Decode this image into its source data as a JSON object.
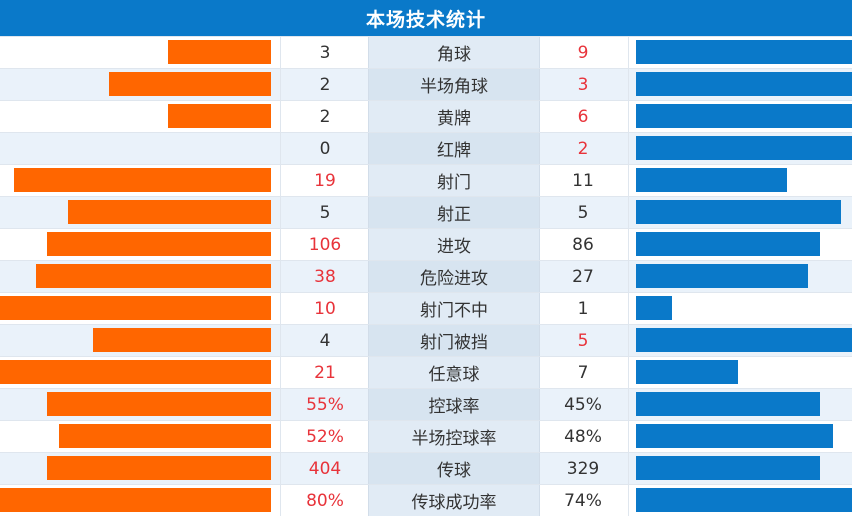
{
  "title": "本场技术统计",
  "colors": {
    "header": "#0a79c9",
    "home_bar": "#ff6600",
    "away_bar": "#0a79c9",
    "highlight": "#e8333a"
  },
  "rows": [
    {
      "label": "角球",
      "home": "3",
      "away": "9",
      "home_frac": 0.379,
      "away_frac": 1.0,
      "highlight": "away"
    },
    {
      "label": "半场角球",
      "home": "2",
      "away": "3",
      "home_frac": 0.599,
      "away_frac": 1.0,
      "highlight": "away"
    },
    {
      "label": "黄牌",
      "home": "2",
      "away": "6",
      "home_frac": 0.379,
      "away_frac": 1.0,
      "highlight": "away"
    },
    {
      "label": "红牌",
      "home": "0",
      "away": "2",
      "home_frac": 0.0,
      "away_frac": 1.0,
      "highlight": "away"
    },
    {
      "label": "射门",
      "home": "19",
      "away": "11",
      "home_frac": 0.949,
      "away_frac": 0.699,
      "highlight": "home"
    },
    {
      "label": "射正",
      "home": "5",
      "away": "5",
      "home_frac": 0.75,
      "away_frac": 0.949,
      "highlight": "none"
    },
    {
      "label": "进攻",
      "home": "106",
      "away": "86",
      "home_frac": 0.827,
      "away_frac": 0.852,
      "highlight": "home"
    },
    {
      "label": "危险进攻",
      "home": "38",
      "away": "27",
      "home_frac": 0.868,
      "away_frac": 0.796,
      "highlight": "home"
    },
    {
      "label": "射门不中",
      "home": "10",
      "away": "1",
      "home_frac": 1.0,
      "away_frac": 0.167,
      "highlight": "home"
    },
    {
      "label": "射门被挡",
      "home": "4",
      "away": "5",
      "home_frac": 0.658,
      "away_frac": 1.0,
      "highlight": "away"
    },
    {
      "label": "任意球",
      "home": "21",
      "away": "7",
      "home_frac": 1.0,
      "away_frac": 0.472,
      "highlight": "home"
    },
    {
      "label": "控球率",
      "home": "55%",
      "away": "45%",
      "home_frac": 0.827,
      "away_frac": 0.852,
      "highlight": "home"
    },
    {
      "label": "半场控球率",
      "home": "52%",
      "away": "48%",
      "home_frac": 0.783,
      "away_frac": 0.912,
      "highlight": "home"
    },
    {
      "label": "传球",
      "home": "404",
      "away": "329",
      "home_frac": 0.827,
      "away_frac": 0.852,
      "highlight": "home"
    },
    {
      "label": "传球成功率",
      "home": "80%",
      "away": "74%",
      "home_frac": 1.0,
      "away_frac": 1.0,
      "highlight": "home"
    }
  ]
}
